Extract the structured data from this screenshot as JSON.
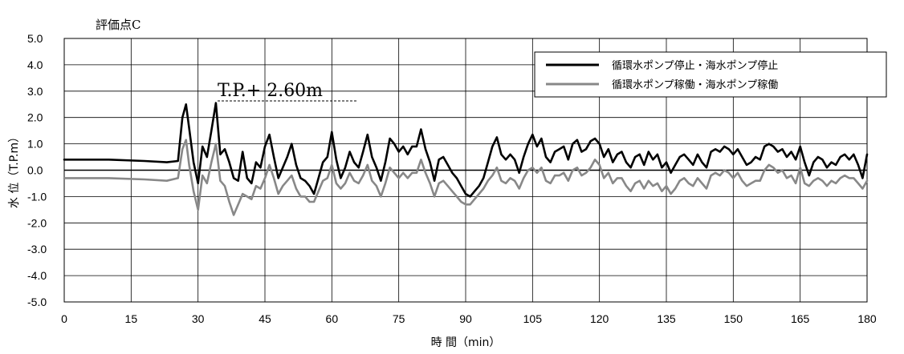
{
  "chart_data": {
    "type": "line",
    "title": "評価点C",
    "xlabel": "時 間（min）",
    "ylabel": "水 位（T.P.m）",
    "xlim": [
      0,
      180
    ],
    "ylim": [
      -5.0,
      5.0
    ],
    "x_ticks": [
      "0",
      "15",
      "30",
      "45",
      "60",
      "75",
      "90",
      "105",
      "120",
      "135",
      "150",
      "165",
      "180"
    ],
    "y_ticks": [
      "5.0",
      "4.0",
      "3.0",
      "2.0",
      "1.0",
      "0.0",
      "-1.0",
      "-2.0",
      "-3.0",
      "-4.0",
      "-5.0"
    ],
    "grid": true,
    "legend_position": "top-right",
    "annotation": {
      "text": "T.P.+ 2.60m",
      "x": 33,
      "y": 2.6
    },
    "series": [
      {
        "name": "循環水ポンプ停止・海水ポンプ停止",
        "color": "#000000",
        "x": [
          0,
          10,
          18,
          23,
          25.5,
          26.5,
          27.3,
          28,
          29,
          30,
          31,
          32,
          33,
          34,
          35,
          36,
          37,
          38,
          39,
          40,
          41,
          42,
          43,
          44,
          45,
          46,
          47,
          48,
          49,
          50,
          51,
          52,
          53,
          54,
          55,
          56,
          57,
          58,
          59,
          60,
          61,
          62,
          63,
          64,
          65,
          66,
          67,
          68,
          69,
          70,
          71,
          72,
          73,
          74,
          75,
          76,
          77,
          78,
          79,
          80,
          81,
          82,
          83,
          84,
          85,
          86,
          87,
          88,
          89,
          90,
          91,
          92,
          93,
          94,
          95,
          96,
          97,
          98,
          99,
          100,
          101,
          102,
          103,
          104,
          105,
          106,
          107,
          108,
          109,
          110,
          111,
          112,
          113,
          114,
          115,
          116,
          117,
          118,
          119,
          120,
          121,
          122,
          123,
          124,
          125,
          126,
          127,
          128,
          129,
          130,
          131,
          132,
          133,
          134,
          135,
          136,
          137,
          138,
          139,
          140,
          141,
          142,
          143,
          144,
          145,
          146,
          147,
          148,
          149,
          150,
          151,
          152,
          153,
          154,
          155,
          156,
          157,
          158,
          159,
          160,
          161,
          162,
          163,
          164,
          165,
          166,
          167,
          168,
          169,
          170,
          171,
          172,
          173,
          174,
          175,
          176,
          177,
          178,
          179,
          180
        ],
        "y": [
          0.4,
          0.4,
          0.35,
          0.3,
          0.35,
          2.0,
          2.5,
          1.6,
          0.3,
          -0.5,
          0.9,
          0.5,
          1.5,
          2.55,
          0.6,
          0.8,
          0.3,
          -0.3,
          -0.4,
          0.7,
          -0.3,
          -0.5,
          0.3,
          0.1,
          0.9,
          1.35,
          0.5,
          -0.3,
          0.1,
          0.5,
          1.0,
          0.2,
          -0.3,
          -0.4,
          -0.6,
          -0.9,
          -0.3,
          0.3,
          0.5,
          1.45,
          0.4,
          -0.3,
          0.1,
          0.7,
          0.3,
          0.1,
          0.7,
          1.35,
          0.5,
          0.1,
          -0.4,
          0.3,
          1.2,
          1.0,
          0.7,
          0.9,
          0.6,
          0.9,
          0.9,
          1.55,
          0.8,
          0.3,
          -0.4,
          0.4,
          0.5,
          0.2,
          -0.1,
          -0.3,
          -0.6,
          -0.9,
          -1.0,
          -0.8,
          -0.6,
          -0.3,
          0.3,
          0.9,
          1.25,
          0.6,
          0.4,
          0.6,
          0.4,
          -0.1,
          0.5,
          1.0,
          1.35,
          0.9,
          1.2,
          0.5,
          0.3,
          0.7,
          0.8,
          0.9,
          0.4,
          1.0,
          1.15,
          0.7,
          0.8,
          1.1,
          1.2,
          1.0,
          0.5,
          0.8,
          0.3,
          0.6,
          0.7,
          0.3,
          0.1,
          0.5,
          0.6,
          0.2,
          0.7,
          0.4,
          0.6,
          0.1,
          0.3,
          -0.1,
          0.2,
          0.5,
          0.6,
          0.4,
          0.2,
          0.6,
          0.3,
          0.1,
          0.7,
          0.8,
          0.7,
          0.9,
          0.8,
          0.6,
          0.8,
          0.5,
          0.2,
          0.3,
          0.5,
          0.4,
          0.9,
          1.0,
          0.9,
          0.7,
          0.8,
          0.5,
          0.7,
          0.4,
          0.9,
          0.3,
          -0.2,
          0.3,
          0.5,
          0.4,
          0.1,
          0.3,
          0.2,
          0.5,
          0.6,
          0.4,
          0.6,
          0.2,
          -0.3,
          0.6
        ]
      },
      {
        "name": "循環水ポンプ稼働・海水ポンプ稼働",
        "color": "#888888",
        "x": [
          0,
          10,
          18,
          23,
          25.5,
          26.5,
          27.3,
          28,
          29,
          30,
          31,
          32,
          33,
          34,
          35,
          36,
          37,
          38,
          39,
          40,
          41,
          42,
          43,
          44,
          45,
          46,
          47,
          48,
          49,
          50,
          51,
          52,
          53,
          54,
          55,
          56,
          57,
          58,
          59,
          60,
          61,
          62,
          63,
          64,
          65,
          66,
          67,
          68,
          69,
          70,
          71,
          72,
          73,
          74,
          75,
          76,
          77,
          78,
          79,
          80,
          81,
          82,
          83,
          84,
          85,
          86,
          87,
          88,
          89,
          90,
          91,
          92,
          93,
          94,
          95,
          96,
          97,
          98,
          99,
          100,
          101,
          102,
          103,
          104,
          105,
          106,
          107,
          108,
          109,
          110,
          111,
          112,
          113,
          114,
          115,
          116,
          117,
          118,
          119,
          120,
          121,
          122,
          123,
          124,
          125,
          126,
          127,
          128,
          129,
          130,
          131,
          132,
          133,
          134,
          135,
          136,
          137,
          138,
          139,
          140,
          141,
          142,
          143,
          144,
          145,
          146,
          147,
          148,
          149,
          150,
          151,
          152,
          153,
          154,
          155,
          156,
          157,
          158,
          159,
          160,
          161,
          162,
          163,
          164,
          165,
          166,
          167,
          168,
          169,
          170,
          171,
          172,
          173,
          174,
          175,
          176,
          177,
          178,
          179,
          180
        ],
        "y": [
          -0.3,
          -0.3,
          -0.35,
          -0.4,
          -0.3,
          0.8,
          1.15,
          0.2,
          -0.8,
          -1.5,
          -0.2,
          -0.5,
          0.3,
          1.0,
          -0.4,
          -0.6,
          -1.2,
          -1.7,
          -1.3,
          -0.9,
          -1.0,
          -1.1,
          -0.6,
          -0.7,
          -0.3,
          0.2,
          -0.3,
          -0.9,
          -0.6,
          -0.4,
          -0.2,
          -0.7,
          -1.0,
          -1.0,
          -1.2,
          -1.2,
          -0.8,
          -0.4,
          -0.3,
          0.2,
          -0.5,
          -0.7,
          -0.5,
          -0.1,
          -0.4,
          -0.5,
          -0.2,
          0.2,
          -0.4,
          -0.6,
          -1.0,
          -0.5,
          0.1,
          -0.1,
          -0.3,
          -0.1,
          -0.3,
          -0.1,
          -0.1,
          0.4,
          -0.1,
          -0.5,
          -1.0,
          -0.5,
          -0.4,
          -0.6,
          -0.8,
          -1.0,
          -1.2,
          -1.3,
          -1.3,
          -1.1,
          -0.9,
          -0.7,
          -0.4,
          -0.2,
          0.1,
          -0.4,
          -0.5,
          -0.3,
          -0.4,
          -0.7,
          -0.3,
          0.0,
          0.1,
          -0.1,
          0.1,
          -0.4,
          -0.5,
          -0.2,
          -0.2,
          -0.1,
          -0.4,
          0.0,
          0.1,
          -0.2,
          -0.1,
          0.1,
          0.4,
          0.2,
          -0.3,
          -0.1,
          -0.5,
          -0.3,
          -0.3,
          -0.6,
          -0.8,
          -0.5,
          -0.4,
          -0.7,
          -0.4,
          -0.6,
          -0.5,
          -0.8,
          -0.6,
          -0.9,
          -0.7,
          -0.4,
          -0.3,
          -0.5,
          -0.6,
          -0.3,
          -0.5,
          -0.7,
          -0.2,
          -0.1,
          -0.2,
          0.0,
          -0.1,
          -0.3,
          -0.1,
          -0.4,
          -0.6,
          -0.5,
          -0.4,
          -0.4,
          0.0,
          0.2,
          0.1,
          -0.1,
          0.0,
          -0.3,
          -0.2,
          -0.5,
          0.1,
          -0.5,
          -0.6,
          -0.4,
          -0.3,
          -0.4,
          -0.6,
          -0.4,
          -0.5,
          -0.3,
          -0.2,
          -0.3,
          -0.3,
          -0.5,
          -0.7,
          -0.4
        ]
      }
    ]
  }
}
